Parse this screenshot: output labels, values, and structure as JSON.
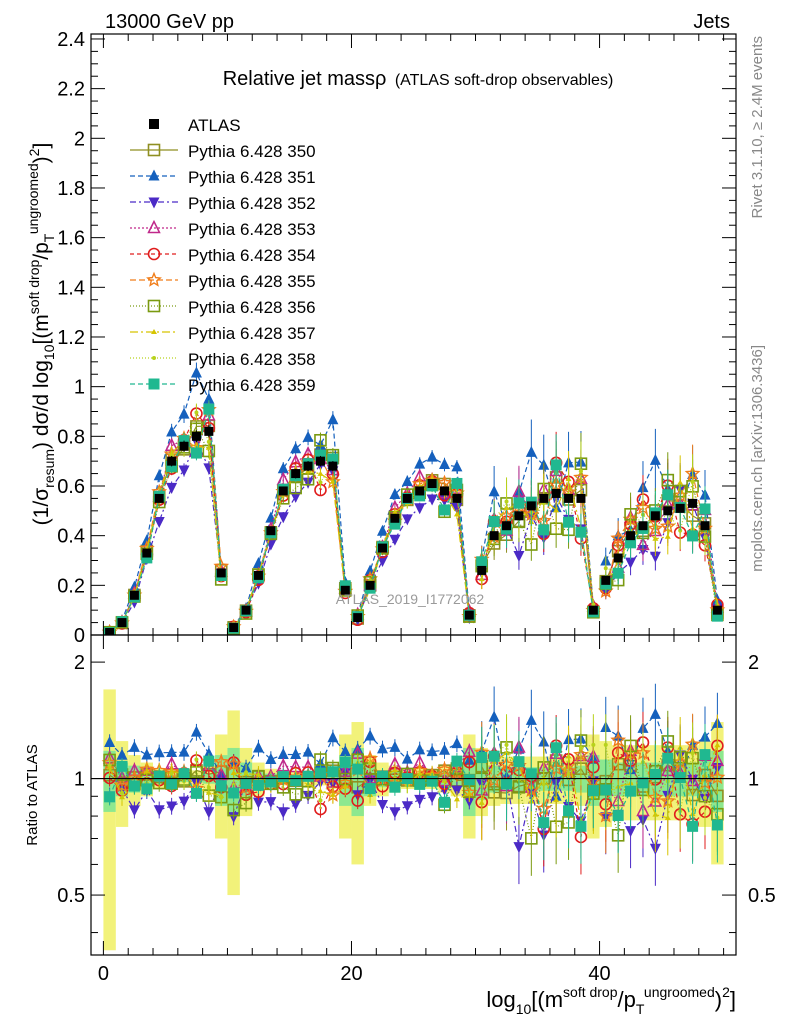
{
  "header": {
    "left": "13000 GeV pp",
    "right": "Jets"
  },
  "side_labels": {
    "rivet": "Rivet 3.1.10, ≥ 2.4M events",
    "mcplots": "mcplots.cern.ch [arXiv:1306.3436]"
  },
  "watermark": "ATLAS_2019_I1772062",
  "chart_data": [
    {
      "type": "line",
      "panel": "main",
      "title": "Relative jet massρ",
      "subtitle": "(ATLAS soft-drop observables)",
      "ylabel_prefix": "(1/σ",
      "ylabel_sub": "resum",
      "ylabel_mid": ") dσ/d log",
      "ylabel_sub2": "10",
      "ylabel_mid2": "[(m",
      "ylabel_sup": "soft drop",
      "ylabel_mid3": "/p",
      "ylabel_subT": "T",
      "ylabel_sup2": "ungroomed",
      "ylabel_end": ")",
      "ylabel_sup3": "2",
      "ylabel_close": "]",
      "xlim": [
        -1,
        51
      ],
      "ylim": [
        0,
        2.42
      ],
      "yticks": [
        "0",
        "0.2",
        "0.4",
        "0.6",
        "0.8",
        "1",
        "1.2",
        "1.4",
        "1.6",
        "1.8",
        "2",
        "2.2",
        "2.4"
      ],
      "ytick_values": [
        0,
        0.2,
        0.4,
        0.6,
        0.8,
        1,
        1.2,
        1.4,
        1.6,
        1.8,
        2,
        2.2,
        2.4
      ],
      "legend_position": "top-left",
      "atlas": {
        "name": "ATLAS",
        "x": [
          0.5,
          1.5,
          2.5,
          3.5,
          4.5,
          5.5,
          6.5,
          7.5,
          8.5,
          9.5,
          10.5,
          11.5,
          12.5,
          13.5,
          14.5,
          15.5,
          16.5,
          17.5,
          18.5,
          19.5,
          20.5,
          21.5,
          22.5,
          23.5,
          24.5,
          25.5,
          26.5,
          27.5,
          28.5,
          29.5,
          30.5,
          31.5,
          32.5,
          33.5,
          34.5,
          35.5,
          36.5,
          37.5,
          38.5,
          39.5,
          40.5,
          41.5,
          42.5,
          43.5,
          44.5,
          45.5,
          46.5,
          47.5,
          48.5,
          49.5
        ],
        "y": [
          0.01,
          0.05,
          0.16,
          0.33,
          0.55,
          0.7,
          0.76,
          0.8,
          0.82,
          0.25,
          0.03,
          0.1,
          0.24,
          0.42,
          0.58,
          0.65,
          0.68,
          0.7,
          0.68,
          0.18,
          0.07,
          0.2,
          0.35,
          0.47,
          0.55,
          0.58,
          0.61,
          0.58,
          0.55,
          0.08,
          0.26,
          0.4,
          0.44,
          0.48,
          0.52,
          0.55,
          0.57,
          0.55,
          0.55,
          0.1,
          0.22,
          0.31,
          0.4,
          0.44,
          0.48,
          0.5,
          0.51,
          0.53,
          0.44,
          0.1
        ]
      },
      "series": [
        {
          "name": "Pythia 6.428 350",
          "color": "#8f8f22",
          "marker": "square-open",
          "dash": "",
          "factor": 1.0,
          "jit": 0.05
        },
        {
          "name": "Pythia 6.428 351",
          "color": "#1560bd",
          "marker": "triangle-up",
          "dash": "5,3",
          "factor": 1.18,
          "jit": 0.12
        },
        {
          "name": "Pythia 6.428 352",
          "color": "#4b2ac6",
          "marker": "triangle-down",
          "dash": "6,3,2,3",
          "factor": 0.88,
          "jit": 0.12
        },
        {
          "name": "Pythia 6.428 353",
          "color": "#c0288a",
          "marker": "triangle-open",
          "dash": "2,2",
          "factor": 1.05,
          "jit": 0.1
        },
        {
          "name": "Pythia 6.428 354",
          "color": "#e01d1d",
          "marker": "circle-open",
          "dash": "4,3",
          "factor": 0.98,
          "jit": 0.12
        },
        {
          "name": "Pythia 6.428 355",
          "color": "#f07d1a",
          "marker": "star",
          "dash": "6,3",
          "factor": 1.02,
          "jit": 0.1
        },
        {
          "name": "Pythia 6.428 356",
          "color": "#7a9a10",
          "marker": "square-open",
          "dash": "1,2",
          "factor": 0.97,
          "jit": 0.12
        },
        {
          "name": "Pythia 6.428 357",
          "color": "#d6c400",
          "marker": "tri-small",
          "dash": "8,3,2,3",
          "factor": 1.01,
          "jit": 0.1
        },
        {
          "name": "Pythia 6.428 358",
          "color": "#b8d21c",
          "marker": "dot",
          "dash": "1,2",
          "factor": 1.0,
          "jit": 0.1
        },
        {
          "name": "Pythia 6.428 359",
          "color": "#20b890",
          "marker": "square",
          "dash": "5,3",
          "factor": 0.99,
          "jit": 0.1
        }
      ]
    },
    {
      "type": "line",
      "panel": "ratio",
      "ylabel": "Ratio to ATLAS",
      "xlabel_prefix": "log",
      "xlabel_sub": "10",
      "xlabel_mid": "[(m",
      "xlabel_sup": "soft drop",
      "xlabel_mid2": "/p",
      "xlabel_subT": "T",
      "xlabel_sup2": "ungroomed",
      "xlabel_end": ")",
      "xlabel_sup3": "2",
      "xlabel_close": "]",
      "xlim": [
        -1,
        51
      ],
      "ylim": [
        0.35,
        2.35
      ],
      "yscale": "log",
      "yticks": [
        "0.5",
        "1",
        "2"
      ],
      "ytick_values": [
        0.5,
        1,
        2
      ],
      "xticks": [
        "0",
        "20",
        "40"
      ],
      "xtick_values": [
        0,
        20,
        40
      ],
      "band_inner_color": "#8de88f",
      "band_outer_color": "#f2f27a",
      "band_inner": [
        0.18,
        0.1,
        0.08,
        0.05,
        0.03,
        0.02,
        0.02,
        0.02,
        0.03,
        0.15,
        0.2,
        0.1,
        0.05,
        0.03,
        0.02,
        0.02,
        0.02,
        0.02,
        0.03,
        0.15,
        0.2,
        0.1,
        0.05,
        0.04,
        0.03,
        0.03,
        0.03,
        0.04,
        0.05,
        0.2,
        0.12,
        0.08,
        0.07,
        0.07,
        0.07,
        0.07,
        0.07,
        0.07,
        0.08,
        0.15,
        0.12,
        0.1,
        0.1,
        0.1,
        0.1,
        0.1,
        0.1,
        0.1,
        0.12,
        0.18
      ],
      "band_outer": [
        0.7,
        0.25,
        0.15,
        0.1,
        0.06,
        0.04,
        0.04,
        0.05,
        0.08,
        0.3,
        0.5,
        0.2,
        0.1,
        0.06,
        0.04,
        0.04,
        0.04,
        0.04,
        0.06,
        0.3,
        0.4,
        0.15,
        0.1,
        0.08,
        0.06,
        0.06,
        0.06,
        0.08,
        0.1,
        0.3,
        0.2,
        0.15,
        0.14,
        0.14,
        0.14,
        0.14,
        0.14,
        0.14,
        0.15,
        0.3,
        0.25,
        0.22,
        0.22,
        0.22,
        0.22,
        0.22,
        0.22,
        0.22,
        0.25,
        0.4
      ]
    }
  ]
}
